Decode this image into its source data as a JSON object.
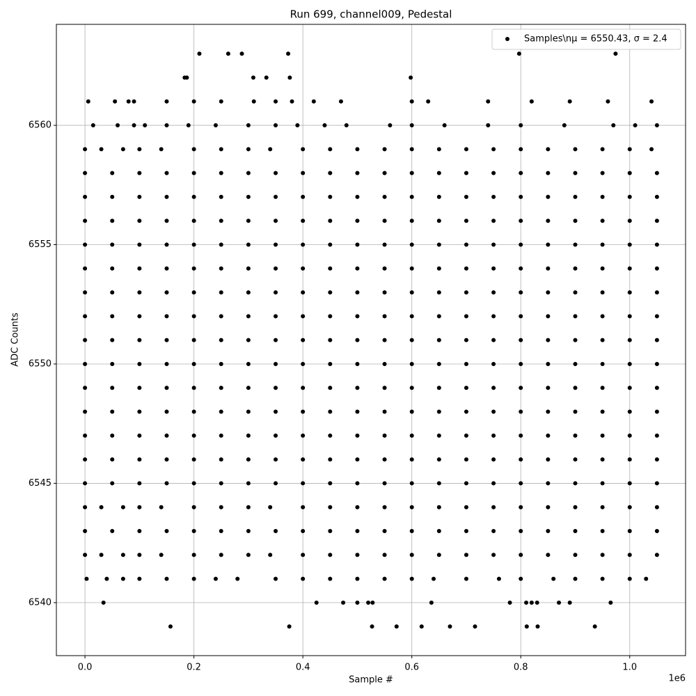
{
  "chart_data": {
    "type": "scatter",
    "title": "Run 699, channel009, Pedestal",
    "x_label": "Sample #",
    "y_label": "ADC Counts",
    "x_offset_label": "1e6",
    "series_name": "Samples\\nμ = 6550.43, σ = 2.4",
    "color": "#000000",
    "xlim": [
      -0.0525,
      1.1025
    ],
    "ylim": [
      6537.78,
      6564.23
    ],
    "xticks": [
      {
        "value": 0,
        "label": "0.0"
      },
      0.2,
      0.4,
      0.6,
      0.8,
      {
        "value": 1,
        "label": "1.0"
      }
    ],
    "yticks": [
      6540,
      6545,
      6550,
      6555,
      6560
    ],
    "grid": true,
    "legend": "upper right",
    "levels": [
      {
        "y": 6563,
        "x": [
          0.21,
          0.263,
          0.288,
          0.373,
          0.797,
          0.974
        ]
      },
      {
        "y": 6562,
        "x": [
          0.183,
          0.187,
          0.309,
          0.333,
          0.376,
          0.598
        ]
      },
      {
        "y": 6561,
        "x": [
          0.006,
          0.055,
          0.08,
          0.09,
          0.15,
          0.2,
          0.25,
          0.31,
          0.35,
          0.38,
          0.42,
          0.47,
          0.6,
          0.63,
          0.74,
          0.82,
          0.89,
          0.96,
          1.04
        ]
      },
      {
        "y": 6560,
        "x": [
          0.015,
          0.06,
          0.09,
          0.11,
          0.15,
          0.19,
          0.24,
          0.3,
          0.35,
          0.39,
          0.44,
          0.48,
          0.56,
          0.6,
          0.66,
          0.74,
          0.8,
          0.88,
          0.97,
          1.01,
          1.05
        ]
      },
      {
        "y": 6559,
        "x": [
          0.0,
          0.03,
          0.07,
          0.1,
          0.14,
          0.2,
          0.25,
          0.3,
          0.34,
          0.4,
          0.45,
          0.5,
          0.55,
          0.6,
          0.65,
          0.7,
          0.75,
          0.8,
          0.85,
          0.9,
          0.95,
          1.0,
          1.04
        ]
      },
      {
        "y": 6558,
        "x": [
          0.0,
          0.05,
          0.1,
          0.15,
          0.2,
          0.25,
          0.3,
          0.35,
          0.4,
          0.45,
          0.5,
          0.55,
          0.6,
          0.65,
          0.7,
          0.75,
          0.8,
          0.85,
          0.9,
          0.95,
          1.0,
          1.05
        ]
      },
      {
        "y": 6557,
        "x": [
          0.0,
          0.05,
          0.1,
          0.15,
          0.2,
          0.25,
          0.3,
          0.35,
          0.4,
          0.45,
          0.5,
          0.55,
          0.6,
          0.65,
          0.7,
          0.75,
          0.8,
          0.85,
          0.9,
          0.95,
          1.0,
          1.05
        ]
      },
      {
        "y": 6556,
        "x": [
          0.0,
          0.05,
          0.1,
          0.15,
          0.2,
          0.25,
          0.3,
          0.35,
          0.4,
          0.45,
          0.5,
          0.55,
          0.6,
          0.65,
          0.7,
          0.75,
          0.8,
          0.85,
          0.9,
          0.95,
          1.0,
          1.05
        ]
      },
      {
        "y": 6555,
        "x": [
          0.0,
          0.05,
          0.1,
          0.15,
          0.2,
          0.25,
          0.3,
          0.35,
          0.4,
          0.45,
          0.5,
          0.55,
          0.6,
          0.65,
          0.7,
          0.75,
          0.8,
          0.85,
          0.9,
          0.95,
          1.0,
          1.05
        ]
      },
      {
        "y": 6554,
        "x": [
          0.0,
          0.05,
          0.1,
          0.15,
          0.2,
          0.25,
          0.3,
          0.35,
          0.4,
          0.45,
          0.5,
          0.55,
          0.6,
          0.65,
          0.7,
          0.75,
          0.8,
          0.85,
          0.9,
          0.95,
          1.0,
          1.05
        ]
      },
      {
        "y": 6553,
        "x": [
          0.0,
          0.05,
          0.1,
          0.15,
          0.2,
          0.25,
          0.3,
          0.35,
          0.4,
          0.45,
          0.5,
          0.55,
          0.6,
          0.65,
          0.7,
          0.75,
          0.8,
          0.85,
          0.9,
          0.95,
          1.0,
          1.05
        ]
      },
      {
        "y": 6552,
        "x": [
          0.0,
          0.05,
          0.1,
          0.15,
          0.2,
          0.25,
          0.3,
          0.35,
          0.4,
          0.45,
          0.5,
          0.55,
          0.6,
          0.65,
          0.7,
          0.75,
          0.8,
          0.85,
          0.9,
          0.95,
          1.0,
          1.05
        ]
      },
      {
        "y": 6551,
        "x": [
          0.0,
          0.05,
          0.1,
          0.15,
          0.2,
          0.25,
          0.3,
          0.35,
          0.4,
          0.45,
          0.5,
          0.55,
          0.6,
          0.65,
          0.7,
          0.75,
          0.8,
          0.85,
          0.9,
          0.95,
          1.0,
          1.05
        ]
      },
      {
        "y": 6550,
        "x": [
          0.0,
          0.05,
          0.1,
          0.15,
          0.2,
          0.25,
          0.3,
          0.35,
          0.4,
          0.45,
          0.5,
          0.55,
          0.6,
          0.65,
          0.7,
          0.75,
          0.8,
          0.85,
          0.9,
          0.95,
          1.0,
          1.05
        ]
      },
      {
        "y": 6549,
        "x": [
          0.0,
          0.05,
          0.1,
          0.15,
          0.2,
          0.25,
          0.3,
          0.35,
          0.4,
          0.45,
          0.5,
          0.55,
          0.6,
          0.65,
          0.7,
          0.75,
          0.8,
          0.85,
          0.9,
          0.95,
          1.0,
          1.05
        ]
      },
      {
        "y": 6548,
        "x": [
          0.0,
          0.05,
          0.1,
          0.15,
          0.2,
          0.25,
          0.3,
          0.35,
          0.4,
          0.45,
          0.5,
          0.55,
          0.6,
          0.65,
          0.7,
          0.75,
          0.8,
          0.85,
          0.9,
          0.95,
          1.0,
          1.05
        ]
      },
      {
        "y": 6547,
        "x": [
          0.0,
          0.05,
          0.1,
          0.15,
          0.2,
          0.25,
          0.3,
          0.35,
          0.4,
          0.45,
          0.5,
          0.55,
          0.6,
          0.65,
          0.7,
          0.75,
          0.8,
          0.85,
          0.9,
          0.95,
          1.0,
          1.05
        ]
      },
      {
        "y": 6546,
        "x": [
          0.0,
          0.05,
          0.1,
          0.15,
          0.2,
          0.25,
          0.3,
          0.35,
          0.4,
          0.45,
          0.5,
          0.55,
          0.6,
          0.65,
          0.7,
          0.75,
          0.8,
          0.85,
          0.9,
          0.95,
          1.0,
          1.05
        ]
      },
      {
        "y": 6545,
        "x": [
          0.0,
          0.05,
          0.1,
          0.15,
          0.2,
          0.25,
          0.3,
          0.35,
          0.4,
          0.45,
          0.5,
          0.55,
          0.6,
          0.65,
          0.7,
          0.75,
          0.8,
          0.85,
          0.9,
          0.95,
          1.0,
          1.05
        ]
      },
      {
        "y": 6544,
        "x": [
          0.0,
          0.03,
          0.07,
          0.1,
          0.14,
          0.2,
          0.25,
          0.3,
          0.34,
          0.4,
          0.45,
          0.5,
          0.55,
          0.6,
          0.65,
          0.7,
          0.75,
          0.8,
          0.85,
          0.9,
          0.95,
          1.0,
          1.05
        ]
      },
      {
        "y": 6543,
        "x": [
          0.0,
          0.05,
          0.1,
          0.15,
          0.2,
          0.25,
          0.3,
          0.35,
          0.4,
          0.45,
          0.5,
          0.55,
          0.6,
          0.65,
          0.7,
          0.75,
          0.8,
          0.85,
          0.9,
          0.95,
          1.0,
          1.05
        ]
      },
      {
        "y": 6542,
        "x": [
          0.0,
          0.03,
          0.07,
          0.1,
          0.14,
          0.2,
          0.25,
          0.3,
          0.34,
          0.4,
          0.45,
          0.5,
          0.55,
          0.6,
          0.65,
          0.7,
          0.75,
          0.8,
          0.85,
          0.9,
          0.95,
          1.0,
          1.05
        ]
      },
      {
        "y": 6541,
        "x": [
          0.003,
          0.04,
          0.07,
          0.1,
          0.15,
          0.2,
          0.24,
          0.28,
          0.35,
          0.4,
          0.45,
          0.5,
          0.55,
          0.6,
          0.64,
          0.7,
          0.76,
          0.8,
          0.86,
          0.9,
          0.95,
          1.0,
          1.03
        ]
      },
      {
        "y": 6540,
        "x": [
          0.034,
          0.425,
          0.474,
          0.5,
          0.52,
          0.528,
          0.636,
          0.78,
          0.81,
          0.82,
          0.83,
          0.87,
          0.89,
          0.965
        ]
      },
      {
        "y": 6539,
        "x": [
          0.157,
          0.375,
          0.527,
          0.572,
          0.618,
          0.67,
          0.716,
          0.811,
          0.831,
          0.936
        ]
      }
    ]
  }
}
